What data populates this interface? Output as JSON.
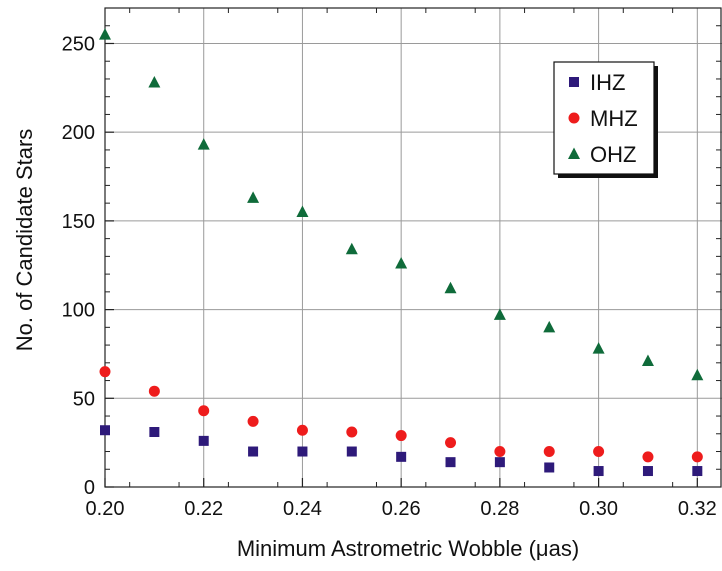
{
  "chart_data": {
    "type": "scatter",
    "title": "",
    "xlabel": "Minimum Astrometric Wobble (μas)",
    "ylabel": "No. of Candidate Stars",
    "xlim": [
      0.2,
      0.325
    ],
    "ylim": [
      0,
      270
    ],
    "grid": true,
    "legend_position": "top-right",
    "x_ticks": [
      "0.20",
      "0.22",
      "0.24",
      "0.26",
      "0.28",
      "0.30",
      "0.32"
    ],
    "y_ticks": [
      "0",
      "50",
      "100",
      "150",
      "200",
      "250"
    ],
    "x": [
      0.2,
      0.21,
      0.22,
      0.23,
      0.24,
      0.25,
      0.26,
      0.27,
      0.28,
      0.29,
      0.3,
      0.31,
      0.32
    ],
    "series": [
      {
        "name": "IHZ",
        "marker": "square",
        "color": "#2e1a7a",
        "values": [
          32,
          31,
          26,
          20,
          20,
          20,
          17,
          14,
          14,
          11,
          9,
          9,
          9
        ]
      },
      {
        "name": "MHZ",
        "marker": "circle",
        "color": "#ee1c1c",
        "values": [
          65,
          54,
          43,
          37,
          32,
          31,
          29,
          25,
          20,
          20,
          20,
          17,
          17
        ]
      },
      {
        "name": "OHZ",
        "marker": "triangle",
        "color": "#0f6b3a",
        "values": [
          255,
          228,
          193,
          163,
          155,
          134,
          126,
          112,
          97,
          90,
          78,
          71,
          63
        ]
      }
    ]
  }
}
